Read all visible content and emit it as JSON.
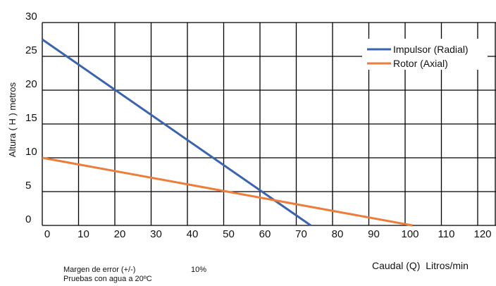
{
  "chart_data": {
    "type": "line",
    "ylabel": "Altura ( H ) metros",
    "xlabel": "Caudal (Q)  Litros/min",
    "xlim": [
      0,
      125
    ],
    "ylim": [
      0,
      30
    ],
    "x_ticks": [
      "0",
      "10",
      "20",
      "30",
      "40",
      "50",
      "60",
      "70",
      "80",
      "90",
      "100",
      "110",
      "120"
    ],
    "y_ticks": [
      "30",
      "25",
      "20",
      "15",
      "10",
      "5",
      "0"
    ],
    "grid": true,
    "legend_position": "top-right",
    "series": [
      {
        "name": "Impulsor (Radial)",
        "color": "#3a63b0",
        "points": [
          [
            0,
            27.5
          ],
          [
            74,
            0
          ]
        ]
      },
      {
        "name": "Rotor (Axial)",
        "color": "#ec7d3a",
        "points": [
          [
            0,
            10
          ],
          [
            102,
            0
          ]
        ]
      }
    ]
  },
  "notes": [
    {
      "label": "Margen de error (+/-)",
      "value": "10%"
    },
    {
      "label": "Pruebas con agua a 20ºC",
      "value": ""
    }
  ]
}
